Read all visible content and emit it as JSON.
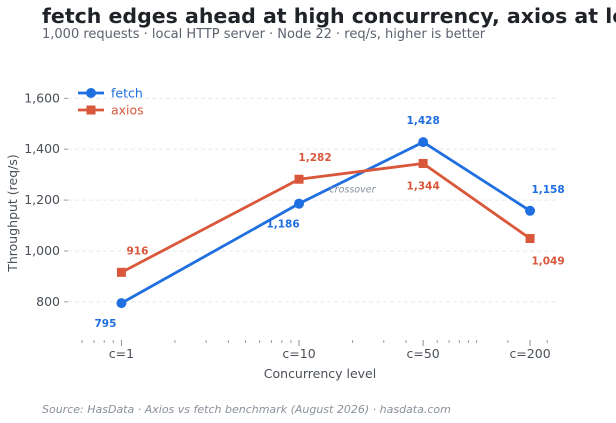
{
  "header": {
    "title": "fetch edges ahead at high concurrency, axios at low",
    "subtitle": "1,000 requests · local HTTP server · Node 22 · req/s, higher is better"
  },
  "footer": {
    "source": "Source: HasData  ·  Axios vs fetch benchmark (August 2026)  ·  hasdata.com"
  },
  "chart_data": {
    "type": "line",
    "x_scale": "log",
    "x": [
      1,
      10,
      50,
      200
    ],
    "categories": [
      "c=1",
      "c=10",
      "c=50",
      "c=200"
    ],
    "xlabel": "Concurrency level",
    "ylabel": "Throughput (req/s)",
    "ylim": [
      650,
      1680
    ],
    "yticks": [
      800,
      1000,
      1200,
      1400,
      1600
    ],
    "ytick_labels": [
      "800",
      "1,000",
      "1,200",
      "1,400",
      "1,600"
    ],
    "grid": "horizontal",
    "legend": "top-left",
    "series": [
      {
        "name": "fetch",
        "color": "#1f6fe0",
        "marker": "circle",
        "values": [
          795,
          1186,
          1428,
          1158
        ],
        "labels": [
          "795",
          "1,186",
          "1,428",
          "1,158"
        ]
      },
      {
        "name": "axios",
        "color": "#d9573a",
        "marker": "square",
        "values": [
          916,
          1282,
          1344,
          1049
        ],
        "labels": [
          "916",
          "1,282",
          "1,344",
          "1,049"
        ]
      }
    ],
    "annotations": [
      {
        "text": "crossover",
        "x": 20,
        "y": 1230
      }
    ]
  }
}
